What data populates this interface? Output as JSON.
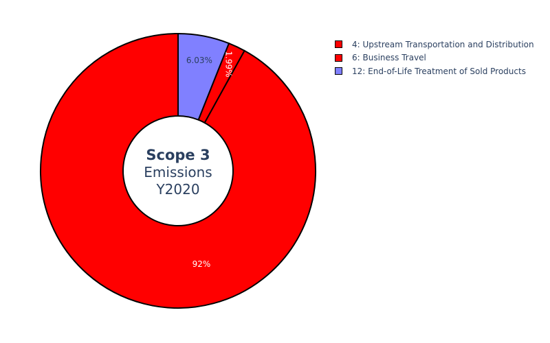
{
  "chart_data": {
    "type": "pie",
    "hole": true,
    "center_title": {
      "bold": "Scope 3",
      "line2": "Emissions",
      "line3": "Y2020"
    },
    "legend_position": "top-right",
    "slices": [
      {
        "name": "4: Upstream Transportation and Distribution",
        "value": 92,
        "label": "92%",
        "color": "#ff0000",
        "label_color": "#ffffff"
      },
      {
        "name": "6: Business Travel",
        "value": 1.99,
        "label": "1.99%",
        "color": "#ff0000",
        "label_color": "#ffffff"
      },
      {
        "name": "12: End-of-Life Treatment of Sold Products",
        "value": 6.03,
        "label": "6.03%",
        "color": "#8080ff",
        "label_color": "#2a3f5f"
      }
    ]
  }
}
